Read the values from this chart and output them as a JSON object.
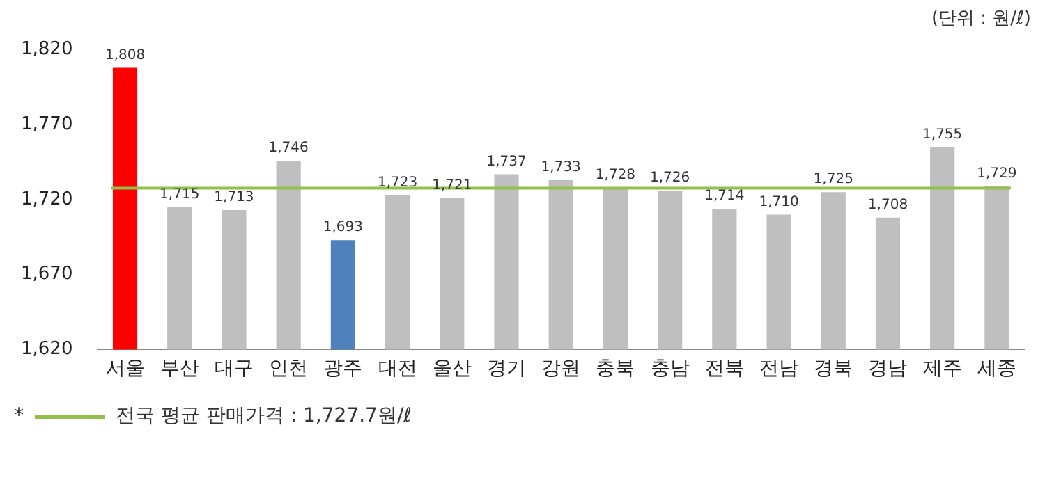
{
  "chart_data": {
    "type": "bar",
    "categories": [
      "서울",
      "부산",
      "대구",
      "인천",
      "광주",
      "대전",
      "울산",
      "경기",
      "강원",
      "충북",
      "충남",
      "전북",
      "전남",
      "경북",
      "경남",
      "제주",
      "세종"
    ],
    "values": [
      1808,
      1715,
      1713,
      1746,
      1693,
      1723,
      1721,
      1737,
      1733,
      1728,
      1726,
      1714,
      1710,
      1725,
      1708,
      1755,
      1729
    ],
    "colors": [
      "#ff0000",
      "#bfbfbf",
      "#bfbfbf",
      "#bfbfbf",
      "#4f81bd",
      "#bfbfbf",
      "#bfbfbf",
      "#bfbfbf",
      "#bfbfbf",
      "#bfbfbf",
      "#bfbfbf",
      "#bfbfbf",
      "#bfbfbf",
      "#bfbfbf",
      "#bfbfbf",
      "#bfbfbf",
      "#bfbfbf"
    ],
    "value_labels": [
      "1,808",
      "1,715",
      "1,713",
      "1,746",
      "1,693",
      "1,723",
      "1,721",
      "1,737",
      "1,733",
      "1,728",
      "1,726",
      "1,714",
      "1,710",
      "1,725",
      "1,708",
      "1,755",
      "1,729"
    ],
    "ylim": [
      1620,
      1820
    ],
    "yticks": [
      {
        "value": 1620,
        "label": "1,620"
      },
      {
        "value": 1670,
        "label": "1,670"
      },
      {
        "value": 1720,
        "label": "1,720"
      },
      {
        "value": 1770,
        "label": "1,770"
      },
      {
        "value": 1820,
        "label": "1,820"
      }
    ],
    "grid": false,
    "ref_lines": [
      {
        "axis": "y",
        "value": 1727.7,
        "label": "전국 평균 판매가격 : 1,727.7원/ℓ",
        "color": "#92c04a"
      }
    ],
    "annotations": [
      "(단위 : 원/ℓ)",
      "*"
    ]
  }
}
